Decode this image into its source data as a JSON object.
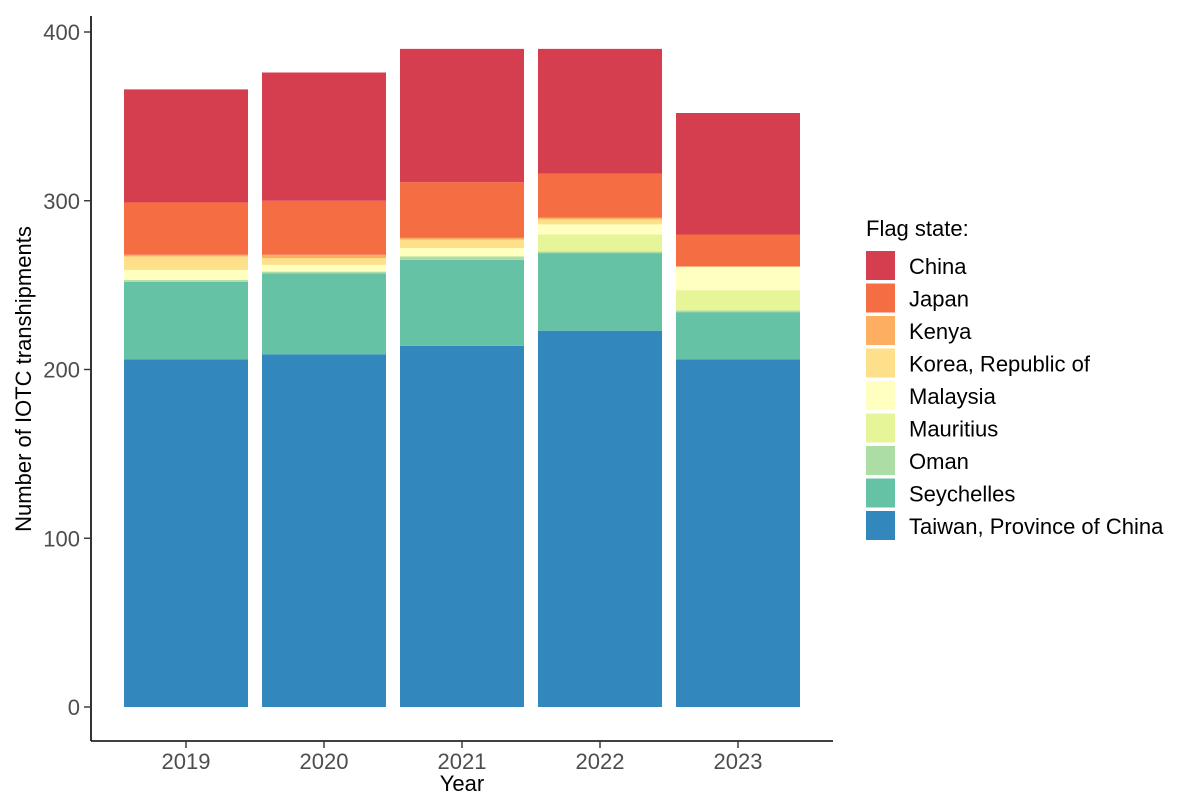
{
  "chart_data": {
    "type": "bar",
    "stacked": true,
    "xlabel": "Year",
    "ylabel": "Number of IOTC transhipments",
    "ylim": [
      0,
      400
    ],
    "yticks": [
      0,
      100,
      200,
      300,
      400
    ],
    "categories": [
      "2019",
      "2020",
      "2021",
      "2022",
      "2023"
    ],
    "legend_title": "Flag state:",
    "legend_position": "right",
    "grid": false,
    "series": [
      {
        "name": "Taiwan, Province of China",
        "color": "#3288bd",
        "values": [
          206,
          209,
          214,
          223,
          206
        ]
      },
      {
        "name": "Seychelles",
        "color": "#66c2a5",
        "values": [
          46,
          48,
          51,
          46,
          28
        ]
      },
      {
        "name": "Oman",
        "color": "#abdda4",
        "values": [
          1,
          1,
          2,
          1,
          1
        ]
      },
      {
        "name": "Mauritius",
        "color": "#e6f598",
        "values": [
          0,
          0,
          0,
          10,
          12
        ]
      },
      {
        "name": "Malaysia",
        "color": "#ffffbf",
        "values": [
          6,
          4,
          5,
          6,
          14
        ]
      },
      {
        "name": "Korea, Republic of",
        "color": "#fee08b",
        "values": [
          8,
          4,
          5,
          3,
          0
        ]
      },
      {
        "name": "Kenya",
        "color": "#fdae61",
        "values": [
          1,
          2,
          1,
          1,
          0
        ]
      },
      {
        "name": "Japan",
        "color": "#f46d43",
        "values": [
          31,
          32,
          33,
          26,
          19
        ]
      },
      {
        "name": "China",
        "color": "#d53e4f",
        "values": [
          67,
          76,
          79,
          74,
          72
        ]
      }
    ],
    "legend_order": [
      "China",
      "Japan",
      "Kenya",
      "Korea, Republic of",
      "Malaysia",
      "Mauritius",
      "Oman",
      "Seychelles",
      "Taiwan, Province of China"
    ]
  }
}
